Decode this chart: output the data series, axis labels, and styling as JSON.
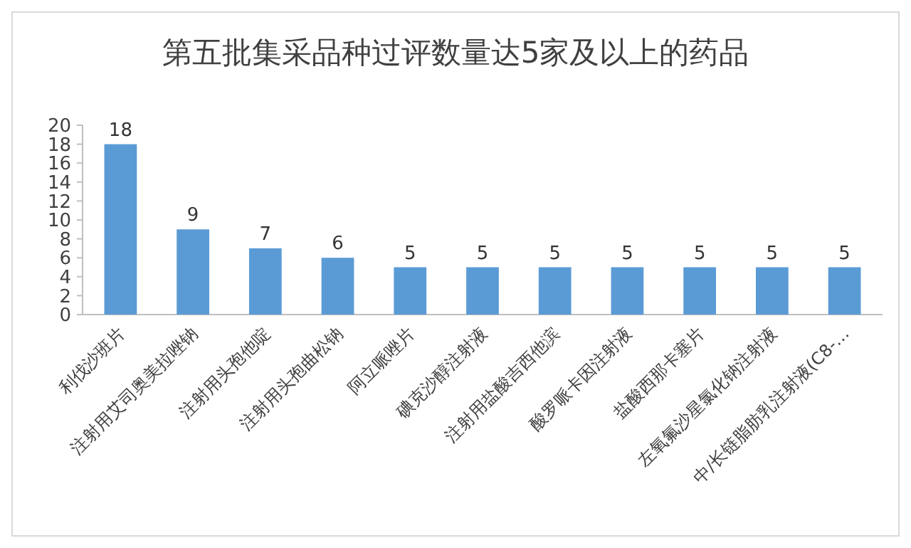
{
  "chart_data": {
    "type": "bar",
    "title": "第五批集采品种过评数量达5家及以上的药品",
    "categories": [
      "利伐沙班片",
      "注射用艾司奥美拉唑钠",
      "注射用头孢他啶",
      "注射用头孢曲松钠",
      "阿立哌唑片",
      "碘克沙醇注射液",
      "注射用盐酸吉西他滨",
      "酸罗哌卡因注射液",
      "盐酸西那卡塞片",
      "左氧氟沙星氯化钠注射液",
      "中/长链脂肪乳注射液(C8-…"
    ],
    "values": [
      18,
      9,
      7,
      6,
      5,
      5,
      5,
      5,
      5,
      5,
      5
    ],
    "color": "#5b9bd5",
    "ylim": [
      0,
      20
    ],
    "yticks": [
      0,
      2,
      4,
      6,
      8,
      10,
      12,
      14,
      16,
      18,
      20
    ],
    "grid": false,
    "data_labels": true
  }
}
